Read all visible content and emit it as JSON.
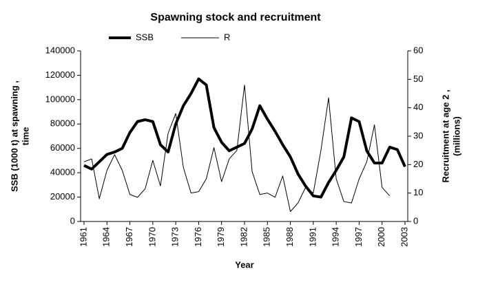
{
  "chart_data": {
    "type": "line",
    "title": "Spawning stock and recruitment",
    "xlabel": "Year",
    "ylabel": [
      "SSB (1000 t) at spawning  ,",
      "time"
    ],
    "y2label": [
      "Recruitment at age 2  ,",
      "(millions)"
    ],
    "x": [
      1961,
      1962,
      1963,
      1964,
      1965,
      1966,
      1967,
      1968,
      1969,
      1970,
      1971,
      1972,
      1973,
      1974,
      1975,
      1976,
      1977,
      1978,
      1979,
      1980,
      1981,
      1982,
      1983,
      1984,
      1985,
      1986,
      1987,
      1988,
      1989,
      1990,
      1991,
      1992,
      1993,
      1994,
      1995,
      1996,
      1997,
      1998,
      1999,
      2000,
      2001,
      2002,
      2003
    ],
    "xlim": [
      1961,
      2003
    ],
    "xticks": [
      1961,
      1964,
      1967,
      1970,
      1973,
      1976,
      1979,
      1982,
      1985,
      1988,
      1991,
      1994,
      1997,
      2000,
      2003
    ],
    "ylim": [
      0,
      140000
    ],
    "yticks": [
      0,
      20000,
      40000,
      60000,
      80000,
      100000,
      120000,
      140000
    ],
    "y2lim": [
      0,
      60
    ],
    "y2ticks": [
      0,
      10,
      20,
      30,
      40,
      50,
      60
    ],
    "grid": false,
    "legend": "top",
    "series": [
      {
        "name": "SSB",
        "color": "#000000",
        "values": [
          46000,
          43000,
          49000,
          55000,
          57000,
          60000,
          73000,
          82000,
          83500,
          82000,
          63000,
          57000,
          80000,
          95000,
          105000,
          117000,
          112000,
          77000,
          65000,
          58000,
          61000,
          64000,
          76000,
          95000,
          84000,
          74000,
          63000,
          53000,
          39000,
          29000,
          21000,
          20000,
          32000,
          42000,
          53000,
          85000,
          82000,
          58000,
          48000,
          48000,
          61000,
          59000,
          45000
        ]
      },
      {
        "name": "R",
        "color": "#000000",
        "axis": "y2",
        "values": [
          21,
          22,
          8,
          18,
          23.5,
          18,
          9.5,
          8.5,
          11.5,
          21.5,
          12.5,
          31,
          38,
          19,
          10,
          10.5,
          15,
          26,
          14,
          22,
          25,
          48,
          17.5,
          9.5,
          10,
          8.5,
          16,
          3.5,
          6.5,
          12,
          10,
          25,
          43.5,
          15,
          7,
          6.5,
          15,
          21,
          34,
          12,
          9,
          null,
          null
        ]
      }
    ]
  }
}
